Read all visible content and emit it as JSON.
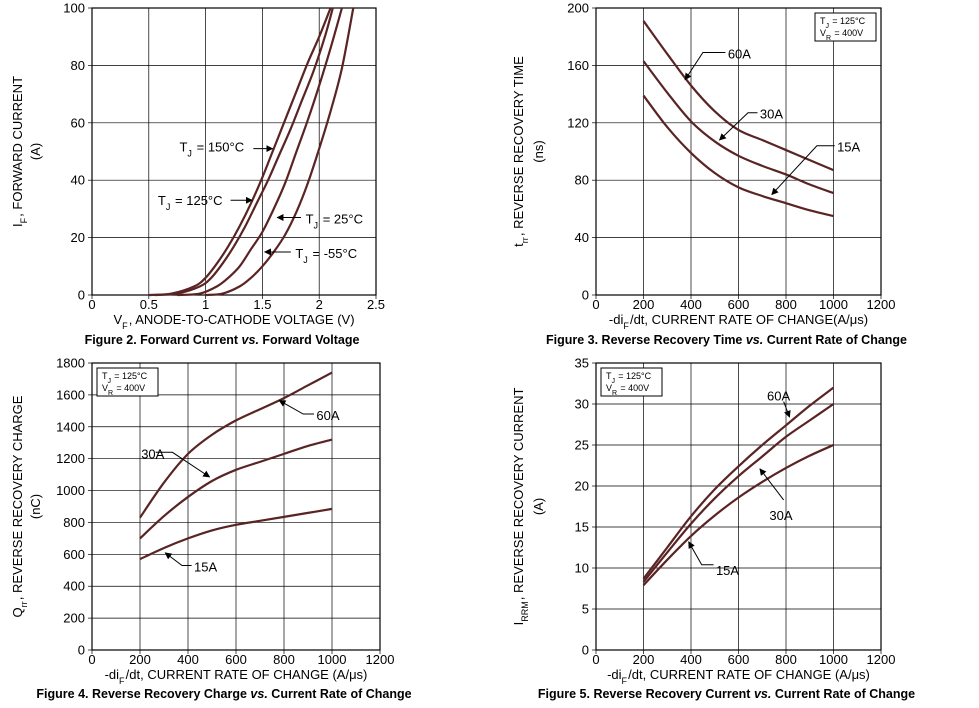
{
  "chart_data": [
    {
      "id": "fig2",
      "type": "line",
      "title": "Figure 2. Forward Current vs. Forward Voltage",
      "xlabel": "V_F, ANODE-TO-CATHODE VOLTAGE (V)",
      "ylabel": "I_F, FORWARD CURRENT (A)",
      "ylabel_main": "I_F, FORWARD CURRENT",
      "ylabel_unit": "(A)",
      "xlim": [
        0,
        2.5
      ],
      "ylim": [
        0,
        100
      ],
      "xticks": [
        0,
        0.5,
        1,
        1.5,
        2,
        2.5
      ],
      "xtick_labels": [
        "0",
        "0.5",
        "1",
        "1.5",
        "2",
        "2.5"
      ],
      "yticks": [
        0,
        20,
        40,
        60,
        80,
        100
      ],
      "ytick_labels": [
        "0",
        "20",
        "40",
        "60",
        "80",
        "100"
      ],
      "grid": true,
      "series": [
        {
          "name": "T_J = 150°C",
          "x": [
            0.5,
            0.7,
            0.9,
            1.0,
            1.1,
            1.2,
            1.3,
            1.4,
            1.5,
            1.6,
            1.7,
            1.8,
            1.9,
            2.0,
            2.1
          ],
          "y": [
            0,
            0.5,
            3,
            6,
            11,
            17,
            24,
            32,
            41,
            51,
            61,
            71,
            81,
            90,
            100
          ]
        },
        {
          "name": "T_J = 125°C",
          "x": [
            0.55,
            0.75,
            0.95,
            1.05,
            1.15,
            1.25,
            1.35,
            1.45,
            1.55,
            1.65,
            1.75,
            1.85,
            1.95,
            2.05,
            2.12
          ],
          "y": [
            0,
            0.5,
            3,
            6,
            11,
            17,
            24,
            32,
            40,
            49,
            58,
            68,
            78,
            90,
            100
          ]
        },
        {
          "name": "T_J = 25°C",
          "x": [
            0.75,
            0.95,
            1.1,
            1.2,
            1.3,
            1.4,
            1.5,
            1.6,
            1.7,
            1.8,
            1.9,
            2.0,
            2.1,
            2.2
          ],
          "y": [
            0,
            0.5,
            3,
            6,
            10,
            16,
            22,
            30,
            39,
            50,
            61,
            73,
            86,
            100
          ]
        },
        {
          "name": "T_J = -55°C",
          "x": [
            1.0,
            1.15,
            1.3,
            1.4,
            1.5,
            1.6,
            1.7,
            1.8,
            1.9,
            2.0,
            2.1,
            2.2,
            2.3
          ],
          "y": [
            0,
            0.5,
            3,
            6,
            10,
            15,
            21,
            29,
            39,
            51,
            64,
            79,
            100
          ]
        }
      ],
      "labels": [
        "T_J = 150°C",
        "T_J = 125°C",
        "T_J = 25°C",
        "T_J = -55°C"
      ],
      "annotations": [
        {
          "text": "T_J = 150°C",
          "label_pos": [
            0.77,
            51.5
          ],
          "anchor": "start",
          "line": [
            [
              1.42,
              51
            ],
            [
              1.59,
              51
            ]
          ]
        },
        {
          "text": "T_J = 125°C",
          "label_pos": [
            0.58,
            33
          ],
          "anchor": "start",
          "line": [
            [
              1.22,
              33
            ],
            [
              1.41,
              33
            ]
          ]
        },
        {
          "text": "T_J = 25°C",
          "label_pos": [
            1.88,
            26.5
          ],
          "anchor": "start",
          "line": [
            [
              1.84,
              27
            ],
            [
              1.63,
              27
            ]
          ]
        },
        {
          "text": "T_J = -55°C",
          "label_pos": [
            1.79,
            14.5
          ],
          "anchor": "start",
          "line": [
            [
              1.75,
              15
            ],
            [
              1.52,
              15
            ]
          ]
        }
      ]
    },
    {
      "id": "fig3",
      "type": "line",
      "title": "Figure 3. Reverse Recovery Time vs. Current Rate of Change",
      "xlabel": "-di_F/dt, CURRENT RATE OF CHANGE(A/μs)",
      "ylabel": "t_rr, REVERSE RECOVERY TIME (ns)",
      "ylabel_main": "t_rr, REVERSE RECOVERY TIME",
      "ylabel_unit": "(ns)",
      "xlim": [
        0,
        1200
      ],
      "ylim": [
        0,
        200
      ],
      "xticks": [
        0,
        200,
        400,
        600,
        800,
        1000,
        1200
      ],
      "xtick_labels": [
        "0",
        "200",
        "400",
        "600",
        "800",
        "1000",
        "1200"
      ],
      "yticks": [
        0,
        40,
        80,
        120,
        160,
        200
      ],
      "ytick_labels": [
        "0",
        "40",
        "80",
        "120",
        "160",
        "200"
      ],
      "grid": true,
      "conditions": [
        "T_J = 125°C",
        "V_R = 400V"
      ],
      "series": [
        {
          "name": "60A",
          "x": [
            200,
            300,
            400,
            500,
            600,
            700,
            800,
            900,
            1000
          ],
          "y": [
            191,
            168,
            146,
            128,
            115,
            108,
            101,
            94,
            87
          ]
        },
        {
          "name": "30A",
          "x": [
            200,
            300,
            400,
            500,
            600,
            700,
            800,
            900,
            1000
          ],
          "y": [
            163,
            141,
            121,
            107,
            97,
            90,
            84,
            77,
            71
          ]
        },
        {
          "name": "15A",
          "x": [
            200,
            300,
            400,
            500,
            600,
            700,
            800,
            900,
            1000
          ],
          "y": [
            139,
            117,
            99,
            85,
            75,
            69,
            64,
            59,
            55
          ]
        }
      ],
      "labels": [
        "60A",
        "30A",
        "15A"
      ],
      "annotations": [
        {
          "text": "60A",
          "label_pos": [
            555,
            168
          ],
          "anchor": "start",
          "line": [
            [
              545,
              169
            ],
            [
              450,
              169
            ],
            [
              375,
              150
            ]
          ]
        },
        {
          "text": "30A",
          "label_pos": [
            690,
            126
          ],
          "anchor": "start",
          "line": [
            [
              680,
              127
            ],
            [
              640,
              127
            ],
            [
              520,
              108
            ]
          ]
        },
        {
          "text": "15A",
          "label_pos": [
            1015,
            103
          ],
          "anchor": "start",
          "line": [
            [
              1005,
              104
            ],
            [
              930,
              104
            ],
            [
              740,
              70
            ]
          ]
        }
      ]
    },
    {
      "id": "fig4",
      "type": "line",
      "title": "Figure 4. Reverse Recovery Charge vs. Current Rate of Change",
      "xlabel": "-di_F/dt, CURRENT RATE OF CHANGE (A/μs)",
      "ylabel": "Q_rr, REVERSE RECOVERY CHARGE (nC)",
      "ylabel_main": "Q_rr, REVERSE RECOVERY CHARGE",
      "ylabel_unit": "(nC)",
      "xlim": [
        0,
        1200
      ],
      "ylim": [
        0,
        1800
      ],
      "xticks": [
        0,
        200,
        400,
        600,
        800,
        1000,
        1200
      ],
      "xtick_labels": [
        "0",
        "200",
        "400",
        "600",
        "800",
        "1000",
        "1200"
      ],
      "yticks": [
        0,
        200,
        400,
        600,
        800,
        1000,
        1200,
        1400,
        1600,
        1800
      ],
      "ytick_labels": [
        "0",
        "200",
        "400",
        "600",
        "800",
        "1000",
        "1200",
        "1400",
        "1600",
        "1800"
      ],
      "grid": true,
      "conditions": [
        "T_J = 125°C",
        "V_R = 400V"
      ],
      "series": [
        {
          "name": "60A",
          "x": [
            200,
            300,
            400,
            500,
            600,
            700,
            800,
            900,
            1000
          ],
          "y": [
            830,
            1050,
            1230,
            1350,
            1440,
            1510,
            1580,
            1660,
            1740
          ]
        },
        {
          "name": "30A",
          "x": [
            200,
            300,
            400,
            500,
            600,
            700,
            800,
            900,
            1000
          ],
          "y": [
            700,
            840,
            960,
            1060,
            1130,
            1180,
            1230,
            1280,
            1320
          ]
        },
        {
          "name": "15A",
          "x": [
            200,
            300,
            400,
            500,
            600,
            700,
            800,
            900,
            1000
          ],
          "y": [
            570,
            640,
            700,
            750,
            785,
            810,
            835,
            860,
            885
          ]
        }
      ],
      "labels": [
        "60A",
        "30A",
        "15A"
      ],
      "annotations": [
        {
          "text": "60A",
          "label_pos": [
            935,
            1470
          ],
          "anchor": "start",
          "line": [
            [
              925,
              1480
            ],
            [
              880,
              1480
            ],
            [
              780,
              1565
            ]
          ]
        },
        {
          "text": "30A",
          "label_pos": [
            205,
            1230
          ],
          "anchor": "start",
          "line": [
            [
              265,
              1240
            ],
            [
              335,
              1240
            ],
            [
              490,
              1085
            ]
          ]
        },
        {
          "text": "15A",
          "label_pos": [
            425,
            520
          ],
          "anchor": "start",
          "line": [
            [
              415,
              530
            ],
            [
              375,
              530
            ],
            [
              305,
              610
            ]
          ]
        }
      ]
    },
    {
      "id": "fig5",
      "type": "line",
      "title": "Figure 5. Reverse Recovery Current vs. Current Rate of Change",
      "xlabel": "-di_F/dt, CURRENT RATE OF CHANGE (A/μs)",
      "ylabel": "I_RRM, REVERSE RECOVERY CURRENT (A)",
      "ylabel_main": "I_RRM, REVERSE RECOVERY CURRENT",
      "ylabel_unit": "(A)",
      "xlim": [
        0,
        1200
      ],
      "ylim": [
        0,
        35
      ],
      "xticks": [
        0,
        200,
        400,
        600,
        800,
        1000,
        1200
      ],
      "xtick_labels": [
        "0",
        "200",
        "400",
        "600",
        "800",
        "1000",
        "1200"
      ],
      "yticks": [
        0,
        5,
        10,
        15,
        20,
        25,
        30,
        35
      ],
      "ytick_labels": [
        "0",
        "5",
        "10",
        "15",
        "20",
        "25",
        "30",
        "35"
      ],
      "grid": true,
      "conditions": [
        "T_J = 125°C",
        "V_R = 400V"
      ],
      "series": [
        {
          "name": "60A",
          "x": [
            200,
            300,
            400,
            500,
            600,
            700,
            800,
            900,
            1000
          ],
          "y": [
            8.7,
            12.5,
            16.3,
            19.6,
            22.4,
            25,
            27.4,
            29.8,
            32
          ]
        },
        {
          "name": "30A",
          "x": [
            200,
            300,
            400,
            500,
            600,
            700,
            800,
            900,
            1000
          ],
          "y": [
            8.3,
            11.9,
            15.4,
            18.5,
            21.2,
            23.6,
            26,
            28,
            30
          ]
        },
        {
          "name": "15A",
          "x": [
            200,
            300,
            400,
            500,
            600,
            700,
            800,
            900,
            1000
          ],
          "y": [
            7.9,
            11,
            13.9,
            16.4,
            18.6,
            20.5,
            22.2,
            23.7,
            25
          ]
        }
      ],
      "labels": [
        "60A",
        "30A",
        "15A"
      ],
      "annotations": [
        {
          "text": "60A",
          "label_pos": [
            720,
            31
          ],
          "anchor": "start",
          "line": [
            [
              790,
              30.3
            ],
            [
              815,
              28.4
            ]
          ]
        },
        {
          "text": "30A",
          "label_pos": [
            730,
            16.4
          ],
          "anchor": "start",
          "line": [
            [
              790,
              18.3
            ],
            [
              690,
              22.1
            ]
          ]
        },
        {
          "text": "15A",
          "label_pos": [
            505,
            9.7
          ],
          "anchor": "start",
          "line": [
            [
              495,
              10.4
            ],
            [
              445,
              10.4
            ],
            [
              390,
              13.2
            ]
          ]
        }
      ]
    }
  ]
}
